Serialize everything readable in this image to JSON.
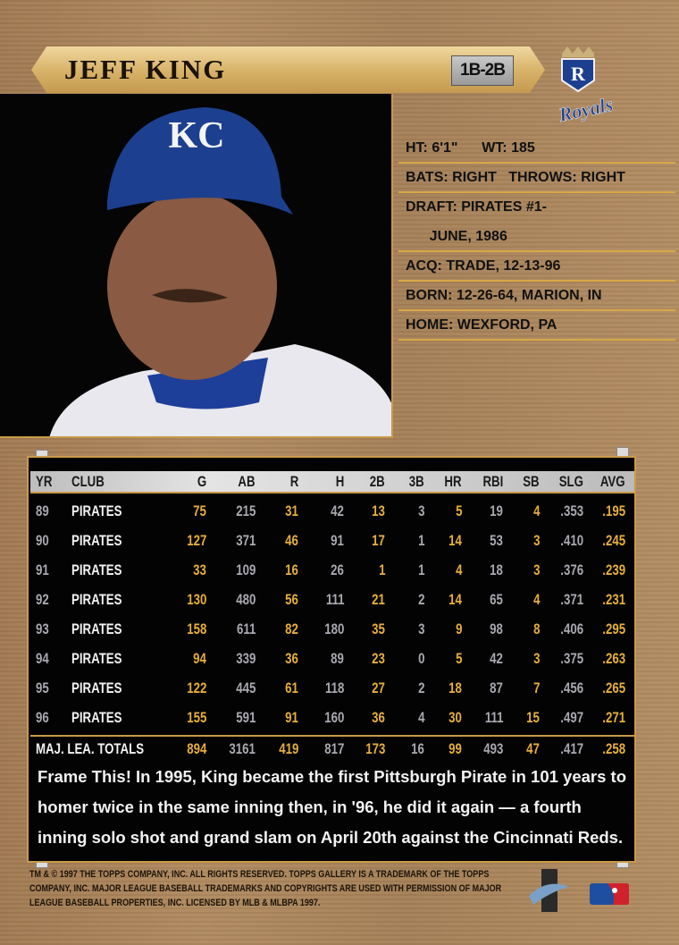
{
  "player": {
    "name": "JEFF KING",
    "position": "1B-2B"
  },
  "team_logo": {
    "letter": "R",
    "script": "Royals"
  },
  "cap_logo": "KC",
  "bio": [
    "HT: 6'1\"      WT: 185",
    "BATS: RIGHT   THROWS: RIGHT",
    "DRAFT: PIRATES #1-",
    "      JUNE, 1986",
    "ACQ: TRADE, 12-13-96",
    "BORN: 12-26-64, MARION, IN",
    "HOME: WEXFORD, PA"
  ],
  "stats": {
    "headers": [
      "YR",
      "CLUB",
      "G",
      "AB",
      "R",
      "H",
      "2B",
      "3B",
      "HR",
      "RBI",
      "SB",
      "SLG",
      "AVG"
    ],
    "rows": [
      [
        "89",
        "PIRATES",
        "75",
        "215",
        "31",
        "42",
        "13",
        "3",
        "5",
        "19",
        "4",
        ".353",
        ".195"
      ],
      [
        "90",
        "PIRATES",
        "127",
        "371",
        "46",
        "91",
        "17",
        "1",
        "14",
        "53",
        "3",
        ".410",
        ".245"
      ],
      [
        "91",
        "PIRATES",
        "33",
        "109",
        "16",
        "26",
        "1",
        "1",
        "4",
        "18",
        "3",
        ".376",
        ".239"
      ],
      [
        "92",
        "PIRATES",
        "130",
        "480",
        "56",
        "111",
        "21",
        "2",
        "14",
        "65",
        "4",
        ".371",
        ".231"
      ],
      [
        "93",
        "PIRATES",
        "158",
        "611",
        "82",
        "180",
        "35",
        "3",
        "9",
        "98",
        "8",
        ".406",
        ".295"
      ],
      [
        "94",
        "PIRATES",
        "94",
        "339",
        "36",
        "89",
        "23",
        "0",
        "5",
        "42",
        "3",
        ".375",
        ".263"
      ],
      [
        "95",
        "PIRATES",
        "122",
        "445",
        "61",
        "118",
        "27",
        "2",
        "18",
        "87",
        "7",
        ".456",
        ".265"
      ],
      [
        "96",
        "PIRATES",
        "155",
        "591",
        "91",
        "160",
        "36",
        "4",
        "30",
        "111",
        "15",
        ".497",
        ".271"
      ]
    ],
    "totals": [
      "MAJ. LEA. TOTALS",
      "894",
      "3161",
      "419",
      "817",
      "173",
      "16",
      "99",
      "493",
      "47",
      ".417",
      ".258"
    ]
  },
  "blurb": "Frame This! In 1995, King became the first Pittsburgh Pirate in 101 years to homer twice in the same inning then, in '96, he did it again — a fourth inning solo shot and grand slam on April 20th against the Cincinnati Reds.",
  "footer": "TM & © 1997 THE TOPPS COMPANY, INC. ALL RIGHTS RESERVED. TOPPS GALLERY IS A TRADEMARK OF THE TOPPS COMPANY, INC. MAJOR LEAGUE BASEBALL TRADEMARKS AND COPYRIGHTS ARE USED WITH PERMISSION OF MAJOR LEAGUE BASEBALL PROPERTIES, INC. LICENSED BY MLB & MLBPA 1997.",
  "colors": {
    "gold": "#e6ae3c",
    "frame": "#c89a48",
    "bronze": "#a8835a",
    "royals_blue": "#1d3f8f"
  }
}
